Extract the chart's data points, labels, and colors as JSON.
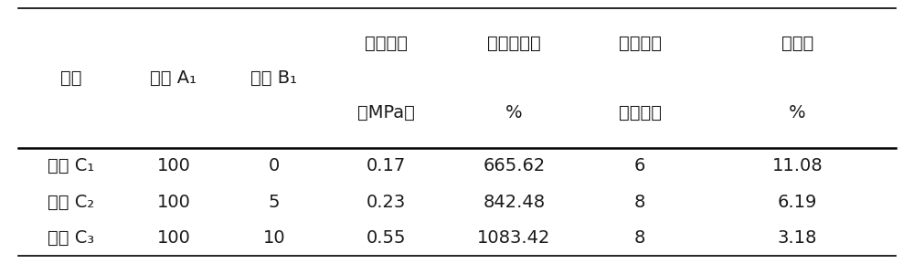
{
  "header_row1": [
    "序号",
    "乳液 A₁",
    "乳液 B₁",
    "拉伸强度",
    "断裂伸长率",
    "放置稳定",
    "吸水率"
  ],
  "header_row2": [
    "",
    "",
    "",
    "（MPa）",
    "%",
    "性（月）",
    "%"
  ],
  "rows": [
    [
      "乳液 C₁",
      "100",
      "0",
      "0.17",
      "665.62",
      "6",
      "11.08"
    ],
    [
      "乳液 C₂",
      "100",
      "5",
      "0.23",
      "842.48",
      "8",
      "6.19"
    ],
    [
      "乳液 C₃",
      "100",
      "10",
      "0.55",
      "1083.42",
      "8",
      "3.18"
    ]
  ],
  "background_color": "#ffffff",
  "text_color": "#1a1a1a",
  "font_size": 14,
  "figsize": [
    10.0,
    2.89
  ],
  "dpi": 100,
  "line_color": "#000000"
}
